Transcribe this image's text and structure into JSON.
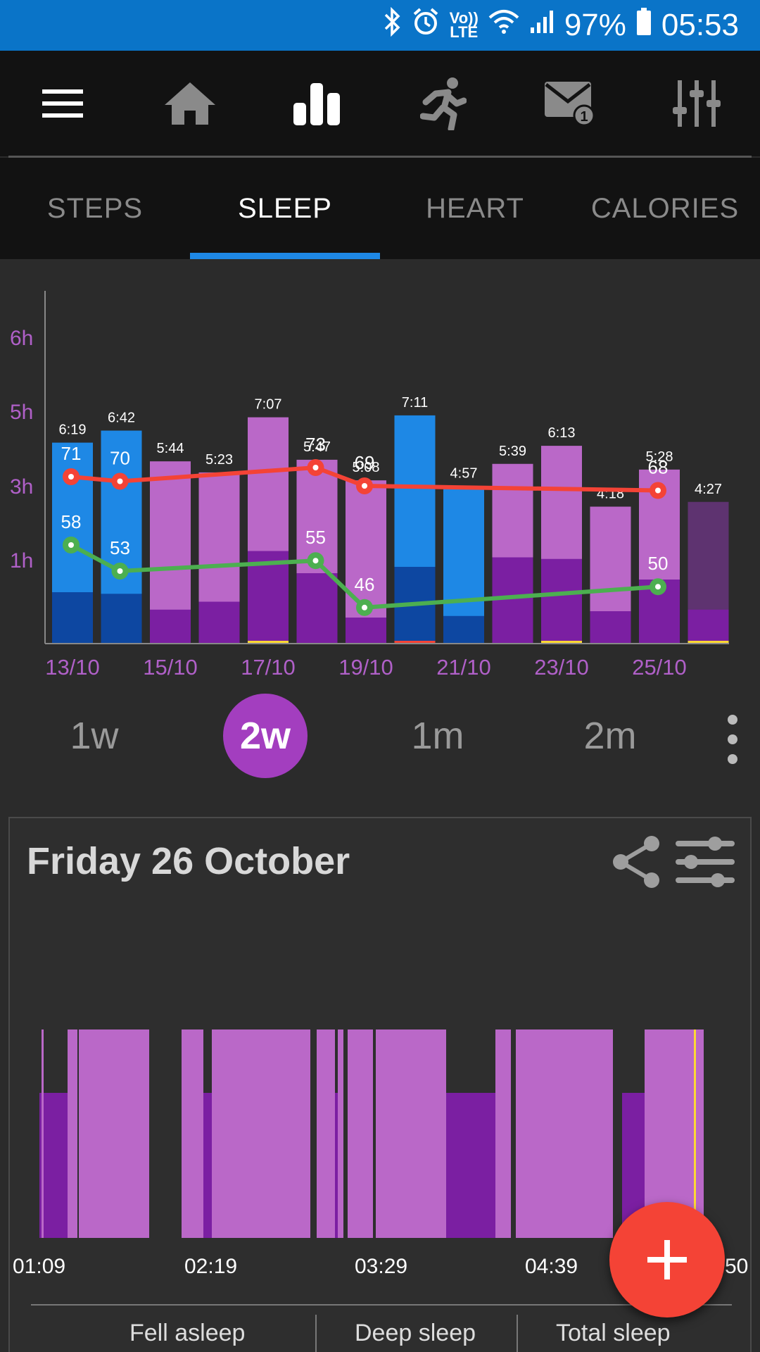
{
  "status_bar": {
    "volte_line1": "Vo))",
    "volte_line2": "LTE",
    "battery": "97%",
    "time": "05:53"
  },
  "toolbar": {
    "icons": [
      "menu-icon",
      "home-icon",
      "bar-chart-icon",
      "running-icon",
      "mail-badge-icon",
      "sliders-icon"
    ],
    "mail_badge_count": "1"
  },
  "tabs": [
    {
      "label": "STEPS"
    },
    {
      "label": "SLEEP",
      "active": true
    },
    {
      "label": "HEART"
    },
    {
      "label": "CALORIES"
    }
  ],
  "chart_data": {
    "type": "bar",
    "y_ticks": [
      "6h",
      "5h",
      "3h",
      "1h"
    ],
    "x_tick_labels": [
      "13/10",
      "15/10",
      "17/10",
      "19/10",
      "21/10",
      "23/10",
      "25/10"
    ],
    "bars": [
      {
        "label": "6:19",
        "total_h": 6.32,
        "deep_h": 1.6,
        "color": "#1e88e5",
        "deep_color": "#0d47a1"
      },
      {
        "label": "6:42",
        "total_h": 6.7,
        "deep_h": 1.55,
        "color": "#1e88e5",
        "deep_color": "#0d47a1"
      },
      {
        "label": "5:44",
        "total_h": 5.73,
        "deep_h": 1.05,
        "color": "#ba68c8",
        "deep_color": "#7b1fa2"
      },
      {
        "label": "5:23",
        "total_h": 5.38,
        "deep_h": 1.3,
        "color": "#ba68c8",
        "deep_color": "#7b1fa2"
      },
      {
        "label": "7:07",
        "total_h": 7.12,
        "deep_h": 2.9,
        "color": "#ba68c8",
        "deep_color": "#7b1fa2",
        "marker": "#fdd835"
      },
      {
        "label": "5:47",
        "total_h": 5.78,
        "deep_h": 2.2,
        "color": "#ba68c8",
        "deep_color": "#7b1fa2"
      },
      {
        "label": "5:08",
        "total_h": 5.13,
        "deep_h": 0.8,
        "color": "#ba68c8",
        "deep_color": "#7b1fa2"
      },
      {
        "label": "7:11",
        "total_h": 7.18,
        "deep_h": 2.4,
        "color": "#1e88e5",
        "deep_color": "#0d47a1",
        "marker": "#f44336"
      },
      {
        "label": "4:57",
        "total_h": 4.95,
        "deep_h": 0.85,
        "color": "#1e88e5",
        "deep_color": "#0d47a1"
      },
      {
        "label": "5:39",
        "total_h": 5.65,
        "deep_h": 2.7,
        "color": "#ba68c8",
        "deep_color": "#7b1fa2"
      },
      {
        "label": "6:13",
        "total_h": 6.22,
        "deep_h": 2.65,
        "color": "#ba68c8",
        "deep_color": "#7b1fa2",
        "marker": "#fdd835"
      },
      {
        "label": "4:18",
        "total_h": 4.3,
        "deep_h": 1.0,
        "color": "#ba68c8",
        "deep_color": "#7b1fa2"
      },
      {
        "label": "5:28",
        "total_h": 5.47,
        "deep_h": 2.0,
        "color": "#ba68c8",
        "deep_color": "#7b1fa2"
      },
      {
        "label": "4:27",
        "total_h": 4.45,
        "deep_h": 1.05,
        "color": "#5e3370",
        "deep_color": "#7b1fa2",
        "marker": "#fdd835"
      }
    ],
    "series": [
      {
        "color": "#f44336",
        "points": [
          {
            "i": 0,
            "v": 71
          },
          {
            "i": 1,
            "v": 70
          },
          {
            "i": 5,
            "v": 73
          },
          {
            "i": 6,
            "v": 69
          },
          {
            "i": 12,
            "v": 68
          }
        ]
      },
      {
        "color": "#4caf50",
        "points": [
          {
            "i": 0,
            "v": 58
          },
          {
            "i": 1,
            "v": 53
          },
          {
            "i": 5,
            "v": 55
          },
          {
            "i": 6,
            "v": 46
          },
          {
            "i": 12,
            "v": 50
          }
        ]
      }
    ]
  },
  "periods": [
    {
      "label": "1w"
    },
    {
      "label": "2w",
      "active": true
    },
    {
      "label": "1m"
    },
    {
      "label": "2m"
    }
  ],
  "detail": {
    "title": "Friday 26 October",
    "time_labels": [
      "01:09",
      "02:19",
      "03:29",
      "04:39",
      "05:50"
    ],
    "time_labels_shown": [
      "01:09",
      "02:19",
      "03:29",
      "04:39",
      "50"
    ],
    "summary": [
      "Fell asleep",
      "Deep sleep",
      "Total sleep"
    ]
  }
}
